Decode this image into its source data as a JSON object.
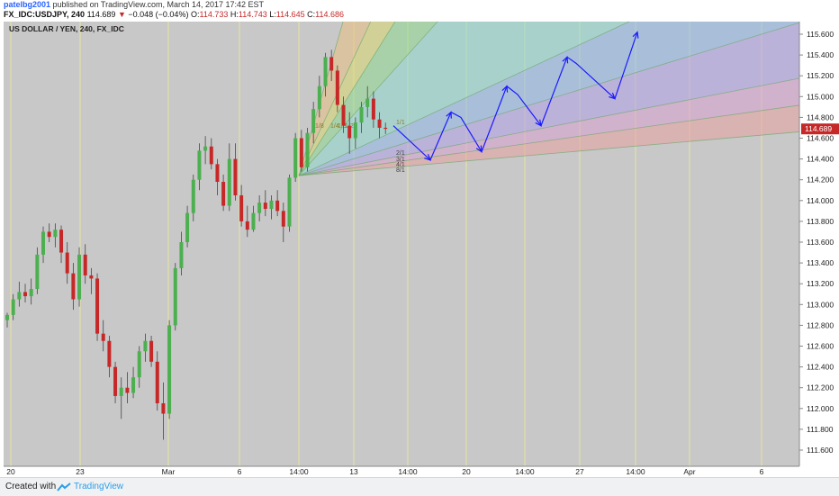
{
  "header": {
    "author": "patelbg2001",
    "publish_text": "published on TradingView.com, March 14, 2017 17:42 EST",
    "symbol": "FX_IDC:USDJPY, 240",
    "last": "114.689",
    "change_arrow": "▼",
    "change": "−0.048 (−0.04%)",
    "o_label": "O:",
    "o_value": "114.733",
    "h_label": "H:",
    "h_value": "114.743",
    "l_label": "L:",
    "l_value": "114.645",
    "c_label": "C:",
    "c_value": "114.686"
  },
  "footer": {
    "created_with": "Created with",
    "brand": "TradingView"
  },
  "chart_data": {
    "type": "candlestick",
    "title": "US DOLLAR / YEN, 240, FX_IDC",
    "ylim": [
      111.5,
      115.8
    ],
    "y_ticks": [
      "115.600",
      "115.400",
      "115.200",
      "115.000",
      "114.800",
      "114.600",
      "114.400",
      "114.200",
      "114.000",
      "113.800",
      "113.600",
      "113.400",
      "113.200",
      "113.000",
      "112.800",
      "112.600",
      "112.400",
      "112.200",
      "112.000",
      "111.800",
      "111.600"
    ],
    "x_ticks": [
      "20",
      "23",
      "Mar",
      "6",
      "14:00",
      "13",
      "14:00",
      "20",
      "14:00",
      "27",
      "14:00",
      "Apr",
      "6"
    ],
    "last_price": "114.689",
    "colors": {
      "up": "#4caf50",
      "down": "#c62828",
      "projection": "#1a1aff",
      "background": "#c8c8c8",
      "grid_v": "#e8e6a0"
    },
    "fan_labels": [
      "8/1",
      "4/1",
      "3/1",
      "2/1",
      "1/1",
      "1/2",
      "1/3",
      "1/4",
      "1/8"
    ],
    "candles": [
      {
        "o": 112.85,
        "h": 112.92,
        "l": 112.78,
        "c": 112.9
      },
      {
        "o": 112.9,
        "h": 113.1,
        "l": 112.85,
        "c": 113.05
      },
      {
        "o": 113.05,
        "h": 113.22,
        "l": 112.98,
        "c": 113.12
      },
      {
        "o": 113.12,
        "h": 113.2,
        "l": 113.02,
        "c": 113.08
      },
      {
        "o": 113.08,
        "h": 113.25,
        "l": 113.0,
        "c": 113.15
      },
      {
        "o": 113.15,
        "h": 113.55,
        "l": 113.1,
        "c": 113.48
      },
      {
        "o": 113.48,
        "h": 113.75,
        "l": 113.4,
        "c": 113.7
      },
      {
        "o": 113.7,
        "h": 113.78,
        "l": 113.6,
        "c": 113.65
      },
      {
        "o": 113.65,
        "h": 113.78,
        "l": 113.55,
        "c": 113.72
      },
      {
        "o": 113.72,
        "h": 113.76,
        "l": 113.4,
        "c": 113.5
      },
      {
        "o": 113.5,
        "h": 113.6,
        "l": 113.2,
        "c": 113.3
      },
      {
        "o": 113.3,
        "h": 113.4,
        "l": 112.95,
        "c": 113.05
      },
      {
        "o": 113.05,
        "h": 113.55,
        "l": 112.98,
        "c": 113.48
      },
      {
        "o": 113.48,
        "h": 113.58,
        "l": 113.2,
        "c": 113.28
      },
      {
        "o": 113.28,
        "h": 113.35,
        "l": 113.1,
        "c": 113.25
      },
      {
        "o": 113.25,
        "h": 113.3,
        "l": 112.65,
        "c": 112.72
      },
      {
        "o": 112.72,
        "h": 112.85,
        "l": 112.55,
        "c": 112.65
      },
      {
        "o": 112.65,
        "h": 112.7,
        "l": 112.3,
        "c": 112.4
      },
      {
        "o": 112.4,
        "h": 112.45,
        "l": 112.05,
        "c": 112.12
      },
      {
        "o": 112.12,
        "h": 112.3,
        "l": 111.9,
        "c": 112.2
      },
      {
        "o": 112.2,
        "h": 112.35,
        "l": 112.05,
        "c": 112.15
      },
      {
        "o": 112.15,
        "h": 112.4,
        "l": 112.1,
        "c": 112.3
      },
      {
        "o": 112.3,
        "h": 112.6,
        "l": 112.2,
        "c": 112.55
      },
      {
        "o": 112.55,
        "h": 112.72,
        "l": 112.45,
        "c": 112.65
      },
      {
        "o": 112.65,
        "h": 112.7,
        "l": 112.4,
        "c": 112.45
      },
      {
        "o": 112.45,
        "h": 112.55,
        "l": 111.98,
        "c": 112.05
      },
      {
        "o": 112.05,
        "h": 112.25,
        "l": 111.7,
        "c": 111.95
      },
      {
        "o": 111.95,
        "h": 112.85,
        "l": 111.9,
        "c": 112.8
      },
      {
        "o": 112.8,
        "h": 113.4,
        "l": 112.75,
        "c": 113.35
      },
      {
        "o": 113.35,
        "h": 113.7,
        "l": 113.28,
        "c": 113.6
      },
      {
        "o": 113.6,
        "h": 113.95,
        "l": 113.55,
        "c": 113.88
      },
      {
        "o": 113.88,
        "h": 114.25,
        "l": 113.8,
        "c": 114.2
      },
      {
        "o": 114.2,
        "h": 114.55,
        "l": 114.1,
        "c": 114.48
      },
      {
        "o": 114.48,
        "h": 114.62,
        "l": 114.35,
        "c": 114.52
      },
      {
        "o": 114.52,
        "h": 114.6,
        "l": 114.3,
        "c": 114.35
      },
      {
        "o": 114.35,
        "h": 114.4,
        "l": 114.05,
        "c": 114.18
      },
      {
        "o": 114.18,
        "h": 114.25,
        "l": 113.9,
        "c": 113.95
      },
      {
        "o": 113.95,
        "h": 114.55,
        "l": 113.9,
        "c": 114.4
      },
      {
        "o": 114.4,
        "h": 114.55,
        "l": 114.0,
        "c": 114.05
      },
      {
        "o": 114.05,
        "h": 114.15,
        "l": 113.75,
        "c": 113.8
      },
      {
        "o": 113.8,
        "h": 113.95,
        "l": 113.65,
        "c": 113.72
      },
      {
        "o": 113.72,
        "h": 113.95,
        "l": 113.7,
        "c": 113.88
      },
      {
        "o": 113.88,
        "h": 114.05,
        "l": 113.8,
        "c": 113.98
      },
      {
        "o": 113.98,
        "h": 114.1,
        "l": 113.85,
        "c": 113.92
      },
      {
        "o": 113.92,
        "h": 114.05,
        "l": 113.82,
        "c": 114.0
      },
      {
        "o": 114.0,
        "h": 114.1,
        "l": 113.85,
        "c": 113.9
      },
      {
        "o": 113.9,
        "h": 113.98,
        "l": 113.6,
        "c": 113.75
      },
      {
        "o": 113.75,
        "h": 114.25,
        "l": 113.7,
        "c": 114.22
      },
      {
        "o": 114.22,
        "h": 114.65,
        "l": 114.18,
        "c": 114.6
      },
      {
        "o": 114.6,
        "h": 114.68,
        "l": 114.28,
        "c": 114.32
      },
      {
        "o": 114.32,
        "h": 114.7,
        "l": 114.28,
        "c": 114.65
      },
      {
        "o": 114.65,
        "h": 114.95,
        "l": 114.55,
        "c": 114.88
      },
      {
        "o": 114.88,
        "h": 115.2,
        "l": 114.8,
        "c": 115.1
      },
      {
        "o": 115.1,
        "h": 115.42,
        "l": 115.0,
        "c": 115.38
      },
      {
        "o": 115.38,
        "h": 115.45,
        "l": 115.15,
        "c": 115.25
      },
      {
        "o": 115.25,
        "h": 115.3,
        "l": 114.85,
        "c": 114.92
      },
      {
        "o": 114.92,
        "h": 115.0,
        "l": 114.65,
        "c": 114.72
      },
      {
        "o": 114.72,
        "h": 114.85,
        "l": 114.45,
        "c": 114.6
      },
      {
        "o": 114.6,
        "h": 114.8,
        "l": 114.5,
        "c": 114.75
      },
      {
        "o": 114.75,
        "h": 114.95,
        "l": 114.65,
        "c": 114.9
      },
      {
        "o": 114.9,
        "h": 115.1,
        "l": 114.8,
        "c": 114.98
      },
      {
        "o": 114.98,
        "h": 115.05,
        "l": 114.7,
        "c": 114.78
      },
      {
        "o": 114.78,
        "h": 114.85,
        "l": 114.6,
        "c": 114.7
      },
      {
        "o": 114.7,
        "h": 114.75,
        "l": 114.64,
        "c": 114.69
      }
    ],
    "projection_path": [
      [
        437,
        114.72
      ],
      [
        478,
        114.39
      ],
      [
        501,
        114.85
      ],
      [
        512,
        114.8
      ],
      [
        535,
        114.47
      ],
      [
        563,
        115.1
      ],
      [
        575,
        115.02
      ],
      [
        601,
        114.72
      ],
      [
        630,
        115.38
      ],
      [
        640,
        115.32
      ],
      [
        683,
        114.98
      ],
      [
        708,
        115.62
      ]
    ]
  }
}
